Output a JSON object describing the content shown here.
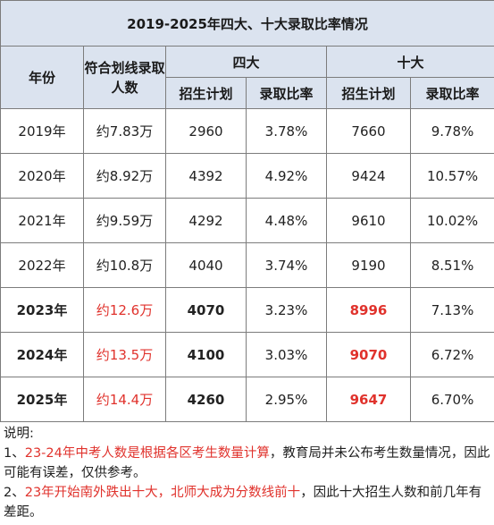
{
  "title": "2019-2025年四大、十大录取比率情况",
  "headers": {
    "year": "年份",
    "qualified": "符合划线录取人数",
    "sida": "四大",
    "shida": "十大",
    "plan": "招生计划",
    "ratio": "录取比率"
  },
  "rows": [
    {
      "year": "2019年",
      "qualified": "约7.83万",
      "sida_plan": "2960",
      "sida_ratio": "3.78%",
      "shida_plan": "7660",
      "shida_ratio": "9.78%"
    },
    {
      "year": "2020年",
      "qualified": "约8.92万",
      "sida_plan": "4392",
      "sida_ratio": "4.92%",
      "shida_plan": "9424",
      "shida_ratio": "10.57%"
    },
    {
      "year": "2021年",
      "qualified": "约9.59万",
      "sida_plan": "4292",
      "sida_ratio": "4.48%",
      "shida_plan": "9610",
      "shida_ratio": "10.02%"
    },
    {
      "year": "2022年",
      "qualified": "约10.8万",
      "sida_plan": "4040",
      "sida_ratio": "3.74%",
      "shida_plan": "9190",
      "shida_ratio": "8.51%"
    },
    {
      "year": "2023年",
      "qualified": "约12.6万",
      "sida_plan": "4070",
      "sida_ratio": "3.23%",
      "shida_plan": "8996",
      "shida_ratio": "7.13%"
    },
    {
      "year": "2024年",
      "qualified": "约13.5万",
      "sida_plan": "4100",
      "sida_ratio": "3.03%",
      "shida_plan": "9070",
      "shida_ratio": "6.72%"
    },
    {
      "year": "2025年",
      "qualified": "约14.4万",
      "sida_plan": "4260",
      "sida_ratio": "2.95%",
      "shida_plan": "9647",
      "shida_ratio": "6.70%"
    }
  ],
  "notes": {
    "heading": "说明:",
    "n1_prefix": "1、",
    "n1_red": "23-24年中考人数是根据各区考生数量计算",
    "n1_rest": "，教育局并未公布考生数量情况，因此可能有误差，仅供参考。",
    "n2_prefix": "2、",
    "n2_red": "23年开始南外跌出十大，北师大成为分数线前十",
    "n2_rest": "，因此十大招生人数和前几年有差距。"
  },
  "colors": {
    "header_bg": "#dbe3ef",
    "highlight_red": "#e0322c",
    "border": "#7c7c7c"
  }
}
